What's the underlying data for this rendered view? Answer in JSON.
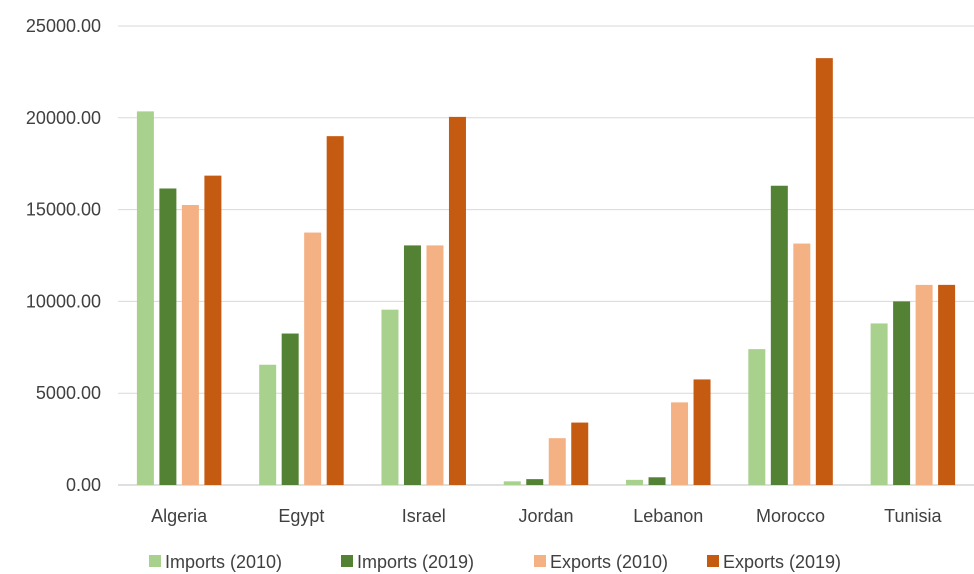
{
  "chart_data": {
    "type": "bar",
    "title": "",
    "xlabel": "",
    "ylabel": "",
    "categories": [
      "Algeria",
      "Egypt",
      "Israel",
      "Jordan",
      "Lebanon",
      "Morocco",
      "Tunisia"
    ],
    "series": [
      {
        "name": "Imports (2010)",
        "color": "#a9d18e",
        "values": [
          20350,
          6550,
          9550,
          200,
          280,
          7400,
          8800
        ]
      },
      {
        "name": "Imports (2019)",
        "color": "#548235",
        "values": [
          16150,
          8250,
          13050,
          320,
          420,
          16300,
          10000
        ]
      },
      {
        "name": "Exports (2010)",
        "color": "#f4b183",
        "values": [
          15250,
          13750,
          13050,
          2550,
          4500,
          13150,
          10900
        ]
      },
      {
        "name": "Exports (2019)",
        "color": "#c55a11",
        "values": [
          16850,
          19000,
          20050,
          3400,
          5750,
          23250,
          10900
        ]
      }
    ],
    "ylim": [
      0,
      25000
    ],
    "yticks": [
      "0.00",
      "5000.00",
      "10000.00",
      "15000.00",
      "20000.00",
      "25000.00"
    ],
    "grid": true,
    "legend_position": "bottom"
  }
}
